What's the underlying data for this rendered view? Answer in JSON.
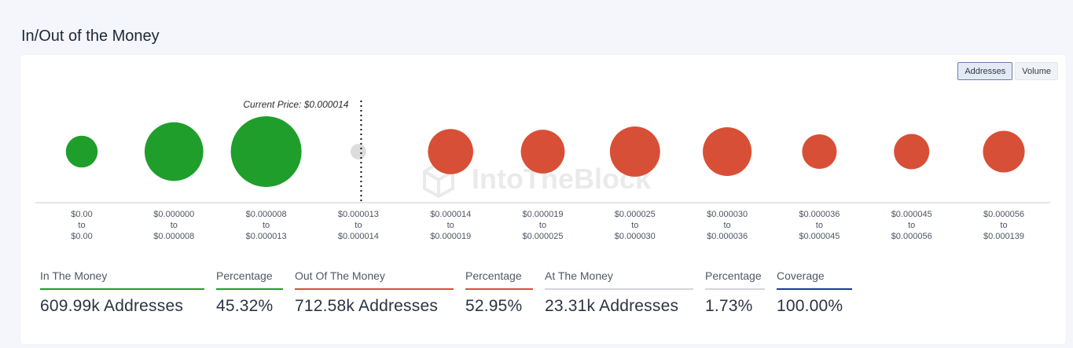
{
  "page": {
    "title": "In/Out of the Money"
  },
  "toggles": [
    {
      "label": "Addresses",
      "active": true
    },
    {
      "label": "Volume",
      "active": false
    }
  ],
  "colors": {
    "in": "#1f9e2b",
    "out": "#d84f37",
    "at": "#dcdcdc",
    "coverage": "#1c3a9c",
    "neutral": "#d3d6dc"
  },
  "watermark": "IntoTheBlock",
  "chart_data": {
    "type": "scatter",
    "annotation": "Current Price: $0.000014",
    "annotation_after_index": 3,
    "buckets": [
      {
        "from": "$0.00",
        "to": "$0.00",
        "status": "in",
        "relative_size": 0.45
      },
      {
        "from": "$0.000000",
        "to": "$0.000008",
        "status": "in",
        "relative_size": 0.83
      },
      {
        "from": "$0.000008",
        "to": "$0.000013",
        "status": "in",
        "relative_size": 1.0
      },
      {
        "from": "$0.000013",
        "to": "$0.000014",
        "status": "at",
        "relative_size": 0.22
      },
      {
        "from": "$0.000014",
        "to": "$0.000019",
        "status": "out",
        "relative_size": 0.64
      },
      {
        "from": "$0.000019",
        "to": "$0.000025",
        "status": "out",
        "relative_size": 0.62
      },
      {
        "from": "$0.000025",
        "to": "$0.000030",
        "status": "out",
        "relative_size": 0.71
      },
      {
        "from": "$0.000030",
        "to": "$0.000036",
        "status": "out",
        "relative_size": 0.69
      },
      {
        "from": "$0.000036",
        "to": "$0.000045",
        "status": "out",
        "relative_size": 0.49
      },
      {
        "from": "$0.000045",
        "to": "$0.000056",
        "status": "out",
        "relative_size": 0.5
      },
      {
        "from": "$0.000056",
        "to": "$0.000139",
        "status": "out",
        "relative_size": 0.59
      }
    ],
    "range_joiner": "to"
  },
  "stats": [
    {
      "label": "In The Money",
      "value": "609.99k Addresses",
      "accent": "in"
    },
    {
      "label": "Percentage",
      "value": "45.32%",
      "accent": "in"
    },
    {
      "label": "Out Of The Money",
      "value": "712.58k Addresses",
      "accent": "out"
    },
    {
      "label": "Percentage",
      "value": "52.95%",
      "accent": "out"
    },
    {
      "label": "At The Money",
      "value": "23.31k Addresses",
      "accent": "neutral"
    },
    {
      "label": "Percentage",
      "value": "1.73%",
      "accent": "neutral"
    },
    {
      "label": "Coverage",
      "value": "100.00%",
      "accent": "coverage"
    }
  ]
}
